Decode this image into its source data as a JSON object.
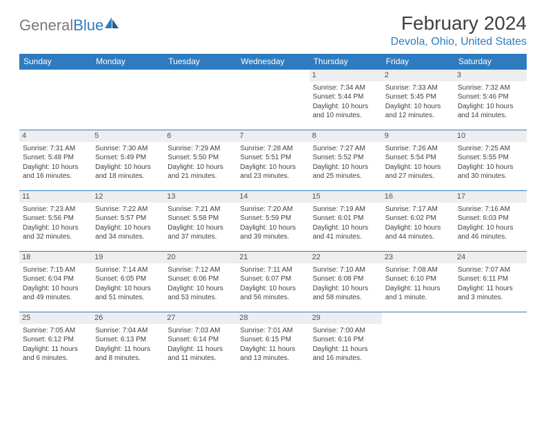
{
  "logo": {
    "part1": "General",
    "part2": "Blue"
  },
  "title": "February 2024",
  "location": "Devola, Ohio, United States",
  "header_bg": "#2f7bbf",
  "header_fg": "#ffffff",
  "daynum_bg": "#eceef0",
  "border_color": "#2f7bbf",
  "days": [
    "Sunday",
    "Monday",
    "Tuesday",
    "Wednesday",
    "Thursday",
    "Friday",
    "Saturday"
  ],
  "weeks": [
    [
      null,
      null,
      null,
      null,
      {
        "n": "1",
        "sr": "7:34 AM",
        "ss": "5:44 PM",
        "dl": "10 hours and 10 minutes."
      },
      {
        "n": "2",
        "sr": "7:33 AM",
        "ss": "5:45 PM",
        "dl": "10 hours and 12 minutes."
      },
      {
        "n": "3",
        "sr": "7:32 AM",
        "ss": "5:46 PM",
        "dl": "10 hours and 14 minutes."
      }
    ],
    [
      {
        "n": "4",
        "sr": "7:31 AM",
        "ss": "5:48 PM",
        "dl": "10 hours and 16 minutes."
      },
      {
        "n": "5",
        "sr": "7:30 AM",
        "ss": "5:49 PM",
        "dl": "10 hours and 18 minutes."
      },
      {
        "n": "6",
        "sr": "7:29 AM",
        "ss": "5:50 PM",
        "dl": "10 hours and 21 minutes."
      },
      {
        "n": "7",
        "sr": "7:28 AM",
        "ss": "5:51 PM",
        "dl": "10 hours and 23 minutes."
      },
      {
        "n": "8",
        "sr": "7:27 AM",
        "ss": "5:52 PM",
        "dl": "10 hours and 25 minutes."
      },
      {
        "n": "9",
        "sr": "7:26 AM",
        "ss": "5:54 PM",
        "dl": "10 hours and 27 minutes."
      },
      {
        "n": "10",
        "sr": "7:25 AM",
        "ss": "5:55 PM",
        "dl": "10 hours and 30 minutes."
      }
    ],
    [
      {
        "n": "11",
        "sr": "7:23 AM",
        "ss": "5:56 PM",
        "dl": "10 hours and 32 minutes."
      },
      {
        "n": "12",
        "sr": "7:22 AM",
        "ss": "5:57 PM",
        "dl": "10 hours and 34 minutes."
      },
      {
        "n": "13",
        "sr": "7:21 AM",
        "ss": "5:58 PM",
        "dl": "10 hours and 37 minutes."
      },
      {
        "n": "14",
        "sr": "7:20 AM",
        "ss": "5:59 PM",
        "dl": "10 hours and 39 minutes."
      },
      {
        "n": "15",
        "sr": "7:19 AM",
        "ss": "6:01 PM",
        "dl": "10 hours and 41 minutes."
      },
      {
        "n": "16",
        "sr": "7:17 AM",
        "ss": "6:02 PM",
        "dl": "10 hours and 44 minutes."
      },
      {
        "n": "17",
        "sr": "7:16 AM",
        "ss": "6:03 PM",
        "dl": "10 hours and 46 minutes."
      }
    ],
    [
      {
        "n": "18",
        "sr": "7:15 AM",
        "ss": "6:04 PM",
        "dl": "10 hours and 49 minutes."
      },
      {
        "n": "19",
        "sr": "7:14 AM",
        "ss": "6:05 PM",
        "dl": "10 hours and 51 minutes."
      },
      {
        "n": "20",
        "sr": "7:12 AM",
        "ss": "6:06 PM",
        "dl": "10 hours and 53 minutes."
      },
      {
        "n": "21",
        "sr": "7:11 AM",
        "ss": "6:07 PM",
        "dl": "10 hours and 56 minutes."
      },
      {
        "n": "22",
        "sr": "7:10 AM",
        "ss": "6:08 PM",
        "dl": "10 hours and 58 minutes."
      },
      {
        "n": "23",
        "sr": "7:08 AM",
        "ss": "6:10 PM",
        "dl": "11 hours and 1 minute."
      },
      {
        "n": "24",
        "sr": "7:07 AM",
        "ss": "6:11 PM",
        "dl": "11 hours and 3 minutes."
      }
    ],
    [
      {
        "n": "25",
        "sr": "7:05 AM",
        "ss": "6:12 PM",
        "dl": "11 hours and 6 minutes."
      },
      {
        "n": "26",
        "sr": "7:04 AM",
        "ss": "6:13 PM",
        "dl": "11 hours and 8 minutes."
      },
      {
        "n": "27",
        "sr": "7:03 AM",
        "ss": "6:14 PM",
        "dl": "11 hours and 11 minutes."
      },
      {
        "n": "28",
        "sr": "7:01 AM",
        "ss": "6:15 PM",
        "dl": "11 hours and 13 minutes."
      },
      {
        "n": "29",
        "sr": "7:00 AM",
        "ss": "6:16 PM",
        "dl": "11 hours and 16 minutes."
      },
      null,
      null
    ]
  ],
  "labels": {
    "sunrise": "Sunrise: ",
    "sunset": "Sunset: ",
    "daylight": "Daylight: "
  }
}
